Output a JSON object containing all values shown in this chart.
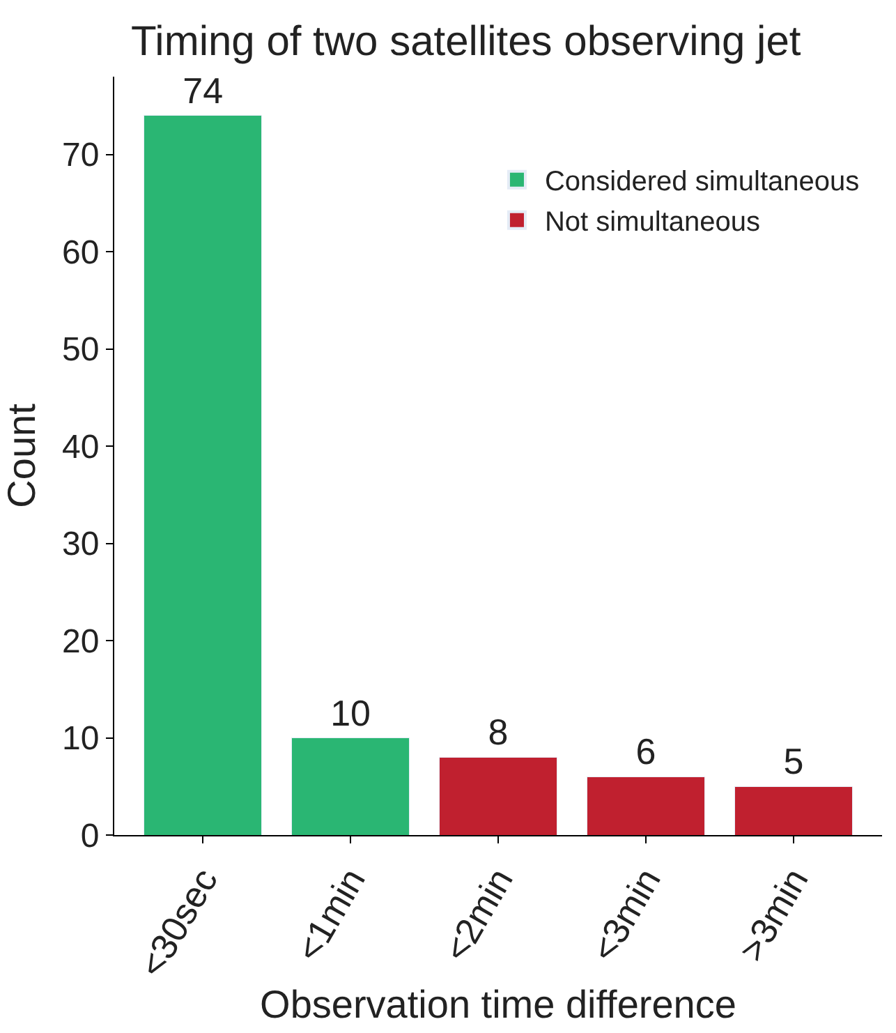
{
  "chart_data": {
    "type": "bar",
    "title": "Timing of two satellites observing jet",
    "xlabel": "Observation time difference",
    "ylabel": "Count",
    "categories": [
      "<30sec",
      "<1min",
      "<2min",
      "<3min",
      ">3min"
    ],
    "series": [
      {
        "name": "Considered simultaneous",
        "color": "#2ab673",
        "values": [
          74,
          10,
          null,
          null,
          null
        ]
      },
      {
        "name": "Not simultaneous",
        "color": "#c0202f",
        "values": [
          null,
          null,
          8,
          6,
          5
        ]
      }
    ],
    "stacked": true,
    "ylim": [
      0,
      78
    ],
    "yticks": [
      0,
      10,
      20,
      30,
      40,
      50,
      60,
      70
    ],
    "data_labels": true,
    "legend": "top right"
  }
}
